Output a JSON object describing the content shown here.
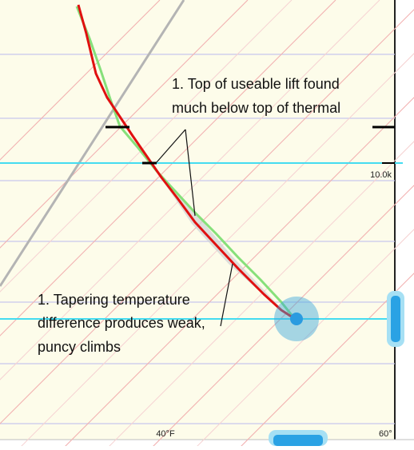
{
  "diagram": {
    "annotations": [
      {
        "lines": [
          "1. Top of useable lift found",
          "much below top of thermal"
        ]
      },
      {
        "lines": [
          "1. Tapering temperature",
          "difference produces weak,",
          "puncy climbs"
        ]
      }
    ],
    "altitude_label": "10.0k",
    "temperature_labels": [
      "40°F",
      "60°"
    ],
    "colors": {
      "background": "#fdfcea",
      "temperature_trace": "#e01010",
      "dewpoint_trace": "#86e07a",
      "cyan_line": "#44dcf0",
      "dry_adiabat": "#f2b0b0",
      "isobar": "#c9c7ee",
      "trigger_marker": "#3aa6dc",
      "annotation_text": "#111111"
    }
  }
}
